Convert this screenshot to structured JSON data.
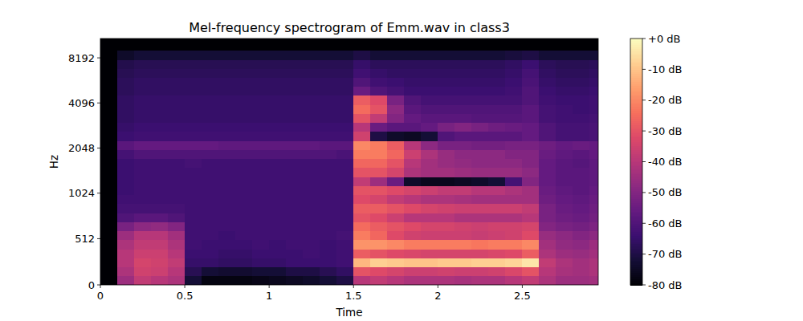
{
  "chart_data": {
    "type": "heatmap",
    "title": "Mel-frequency spectrogram of Emm.wav in class3",
    "x_label": "Time",
    "y_label": "Hz",
    "xlim": [
      0,
      2.95
    ],
    "ylim": [
      0,
      11025
    ],
    "xticks": [
      0,
      0.5,
      1,
      1.5,
      2,
      2.5
    ],
    "yticks": [
      0,
      512,
      1024,
      2048,
      4096,
      8192
    ],
    "x_edges": [
      0,
      0.1,
      0.2,
      0.3,
      0.4,
      0.5,
      0.6,
      0.7,
      0.8,
      0.9,
      1.0,
      1.1,
      1.2,
      1.3,
      1.4,
      1.5,
      1.6,
      1.7,
      1.8,
      1.9,
      2.0,
      2.1,
      2.2,
      2.3,
      2.4,
      2.5,
      2.6,
      2.7,
      2.8,
      2.9,
      2.95
    ],
    "y_edges": [
      0,
      100,
      200,
      300,
      400,
      500,
      600,
      700,
      800,
      900,
      1000,
      1150,
      1320,
      1520,
      1740,
      2000,
      2300,
      2640,
      3030,
      3480,
      4000,
      4600,
      5280,
      6060,
      6960,
      8000,
      9190,
      11025
    ],
    "values": [
      [
        -80,
        -45,
        -38,
        -40,
        -42,
        -72,
        -78,
        -78,
        -78,
        -77,
        -76,
        -75,
        -74,
        -72,
        -70,
        -40,
        -38,
        -40,
        -42,
        -42,
        -42,
        -43,
        -42,
        -42,
        -40,
        -38,
        -42,
        -45,
        -45,
        -44
      ],
      [
        -80,
        -42,
        -35,
        -36,
        -40,
        -68,
        -72,
        -73,
        -73,
        -72,
        -72,
        -70,
        -70,
        -68,
        -66,
        -30,
        -32,
        -34,
        -36,
        -36,
        -35,
        -36,
        -36,
        -35,
        -33,
        -30,
        -40,
        -43,
        -44,
        -42
      ],
      [
        -80,
        -40,
        -34,
        -35,
        -38,
        -65,
        -65,
        -66,
        -66,
        -65,
        -65,
        -64,
        -64,
        -64,
        -63,
        -12,
        -8,
        -9,
        -10,
        -10,
        -9,
        -9,
        -8,
        -8,
        -7,
        -4,
        -38,
        -42,
        -44,
        -42
      ],
      [
        -80,
        -40,
        -36,
        -36,
        -40,
        -64,
        -64,
        -65,
        -65,
        -64,
        -64,
        -64,
        -63,
        -64,
        -63,
        -28,
        -30,
        -32,
        -33,
        -34,
        -34,
        -34,
        -34,
        -33,
        -32,
        -28,
        -42,
        -45,
        -46,
        -44
      ],
      [
        -80,
        -42,
        -38,
        -38,
        -42,
        -63,
        -64,
        -64,
        -64,
        -63,
        -64,
        -63,
        -63,
        -64,
        -63,
        -18,
        -18,
        -20,
        -22,
        -22,
        -22,
        -22,
        -23,
        -22,
        -22,
        -20,
        -44,
        -47,
        -48,
        -45
      ],
      [
        -80,
        -45,
        -40,
        -40,
        -44,
        -63,
        -63,
        -64,
        -63,
        -63,
        -63,
        -63,
        -63,
        -63,
        -62,
        -22,
        -26,
        -32,
        -35,
        -36,
        -36,
        -36,
        -37,
        -36,
        -35,
        -32,
        -46,
        -48,
        -50,
        -48
      ],
      [
        -80,
        -52,
        -48,
        -47,
        -50,
        -63,
        -63,
        -63,
        -63,
        -63,
        -63,
        -63,
        -63,
        -63,
        -63,
        -25,
        -28,
        -30,
        -32,
        -34,
        -34,
        -35,
        -36,
        -35,
        -35,
        -34,
        -50,
        -52,
        -53,
        -51
      ],
      [
        -80,
        -60,
        -58,
        -58,
        -60,
        -63,
        -63,
        -63,
        -63,
        -63,
        -63,
        -63,
        -63,
        -63,
        -63,
        -30,
        -32,
        -36,
        -40,
        -40,
        -40,
        -42,
        -42,
        -42,
        -42,
        -40,
        -52,
        -54,
        -55,
        -53
      ],
      [
        -80,
        -62,
        -62,
        -62,
        -62,
        -63,
        -63,
        -63,
        -63,
        -63,
        -63,
        -63,
        -63,
        -63,
        -63,
        -28,
        -28,
        -30,
        -32,
        -34,
        -35,
        -36,
        -36,
        -36,
        -36,
        -38,
        -52,
        -55,
        -56,
        -54
      ],
      [
        -80,
        -63,
        -63,
        -63,
        -63,
        -63,
        -63,
        -63,
        -63,
        -63,
        -63,
        -63,
        -63,
        -63,
        -63,
        -32,
        -34,
        -38,
        -40,
        -42,
        -42,
        -43,
        -44,
        -44,
        -44,
        -44,
        -54,
        -56,
        -57,
        -55
      ],
      [
        -80,
        -64,
        -63,
        -63,
        -63,
        -63,
        -63,
        -63,
        -63,
        -63,
        -63,
        -63,
        -63,
        -63,
        -63,
        -30,
        -30,
        -32,
        -34,
        -36,
        -38,
        -38,
        -40,
        -40,
        -42,
        -44,
        -55,
        -57,
        -58,
        -56
      ],
      [
        -80,
        -64,
        -63,
        -63,
        -63,
        -63,
        -63,
        -63,
        -63,
        -63,
        -63,
        -63,
        -63,
        -63,
        -63,
        -38,
        -45,
        -55,
        -74,
        -76,
        -76,
        -75,
        -74,
        -72,
        -62,
        -50,
        -56,
        -58,
        -58,
        -57
      ],
      [
        -80,
        -64,
        -63,
        -63,
        -63,
        -63,
        -63,
        -63,
        -63,
        -63,
        -63,
        -63,
        -63,
        -63,
        -63,
        -30,
        -30,
        -34,
        -42,
        -44,
        -44,
        -45,
        -46,
        -46,
        -46,
        -48,
        -56,
        -58,
        -58,
        -57
      ],
      [
        -80,
        -64,
        -63,
        -63,
        -63,
        -62,
        -63,
        -63,
        -63,
        -63,
        -63,
        -63,
        -63,
        -63,
        -63,
        -26,
        -26,
        -30,
        -40,
        -44,
        -46,
        -47,
        -48,
        -48,
        -48,
        -50,
        -56,
        -58,
        -59,
        -57
      ],
      [
        -80,
        -62,
        -60,
        -60,
        -60,
        -60,
        -60,
        -60,
        -60,
        -60,
        -60,
        -60,
        -60,
        -60,
        -61,
        -22,
        -22,
        -26,
        -36,
        -42,
        -46,
        -48,
        -48,
        -48,
        -50,
        -50,
        -55,
        -57,
        -58,
        -56
      ],
      [
        -80,
        -58,
        -56,
        -56,
        -56,
        -56,
        -56,
        -57,
        -57,
        -57,
        -57,
        -57,
        -57,
        -58,
        -58,
        -20,
        -22,
        -28,
        -40,
        -48,
        -52,
        -52,
        -53,
        -53,
        -52,
        -52,
        -54,
        -56,
        -55,
        -56
      ],
      [
        -80,
        -64,
        -63,
        -63,
        -63,
        -63,
        -63,
        -63,
        -63,
        -63,
        -63,
        -63,
        -63,
        -63,
        -63,
        -35,
        -70,
        -74,
        -75,
        -72,
        -60,
        -58,
        -58,
        -58,
        -58,
        -56,
        -60,
        -62,
        -62,
        -61
      ],
      [
        -80,
        -65,
        -64,
        -64,
        -64,
        -64,
        -64,
        -64,
        -64,
        -64,
        -64,
        -64,
        -64,
        -64,
        -64,
        -40,
        -55,
        -58,
        -58,
        -56,
        -52,
        -50,
        -52,
        -54,
        -55,
        -56,
        -60,
        -62,
        -62,
        -61
      ],
      [
        -80,
        -66,
        -65,
        -65,
        -65,
        -65,
        -65,
        -65,
        -65,
        -65,
        -65,
        -65,
        -65,
        -65,
        -65,
        -30,
        -38,
        -50,
        -56,
        -58,
        -58,
        -58,
        -59,
        -59,
        -59,
        -58,
        -62,
        -63,
        -63,
        -62
      ],
      [
        -80,
        -66,
        -65,
        -65,
        -65,
        -65,
        -65,
        -65,
        -65,
        -65,
        -65,
        -65,
        -65,
        -65,
        -65,
        -25,
        -30,
        -48,
        -58,
        -60,
        -60,
        -60,
        -60,
        -60,
        -60,
        -58,
        -62,
        -63,
        -64,
        -63
      ],
      [
        -80,
        -66,
        -65,
        -65,
        -65,
        -65,
        -65,
        -65,
        -65,
        -65,
        -65,
        -65,
        -65,
        -65,
        -65,
        -28,
        -32,
        -52,
        -60,
        -62,
        -62,
        -62,
        -62,
        -62,
        -62,
        -60,
        -63,
        -64,
        -64,
        -63
      ],
      [
        -80,
        -67,
        -66,
        -66,
        -66,
        -66,
        -66,
        -66,
        -66,
        -66,
        -66,
        -66,
        -66,
        -66,
        -66,
        -55,
        -60,
        -62,
        -64,
        -64,
        -64,
        -64,
        -64,
        -64,
        -63,
        -60,
        -64,
        -65,
        -65,
        -64
      ],
      [
        -80,
        -67,
        -66,
        -66,
        -66,
        -66,
        -66,
        -66,
        -66,
        -66,
        -66,
        -66,
        -66,
        -66,
        -66,
        -60,
        -63,
        -64,
        -65,
        -65,
        -65,
        -65,
        -65,
        -65,
        -64,
        -61,
        -65,
        -66,
        -66,
        -65
      ],
      [
        -80,
        -68,
        -67,
        -67,
        -67,
        -67,
        -67,
        -67,
        -67,
        -67,
        -67,
        -67,
        -67,
        -67,
        -67,
        -63,
        -65,
        -66,
        -66,
        -66,
        -66,
        -66,
        -66,
        -66,
        -65,
        -62,
        -66,
        -67,
        -67,
        -66
      ],
      [
        -80,
        -69,
        -68,
        -68,
        -68,
        -68,
        -68,
        -68,
        -68,
        -68,
        -68,
        -68,
        -68,
        -68,
        -68,
        -65,
        -67,
        -67,
        -67,
        -67,
        -67,
        -67,
        -67,
        -67,
        -66,
        -64,
        -67,
        -68,
        -68,
        -67
      ],
      [
        -80,
        -74,
        -72,
        -72,
        -72,
        -72,
        -72,
        -72,
        -72,
        -72,
        -72,
        -72,
        -72,
        -72,
        -72,
        -70,
        -72,
        -72,
        -72,
        -72,
        -72,
        -72,
        -72,
        -72,
        -71,
        -70,
        -72,
        -72,
        -72,
        -72
      ],
      [
        -80,
        -80,
        -80,
        -80,
        -80,
        -80,
        -80,
        -80,
        -80,
        -80,
        -80,
        -80,
        -80,
        -80,
        -80,
        -80,
        -80,
        -80,
        -80,
        -80,
        -80,
        -80,
        -80,
        -80,
        -80,
        -80,
        -80,
        -80,
        -80,
        -80
      ]
    ],
    "colorbar_range": [
      -80,
      0
    ],
    "colorbar_ticks": [
      {
        "value": 0,
        "label": "+0 dB"
      },
      {
        "value": -10,
        "label": "-10 dB"
      },
      {
        "value": -20,
        "label": "-20 dB"
      },
      {
        "value": -30,
        "label": "-30 dB"
      },
      {
        "value": -40,
        "label": "-40 dB"
      },
      {
        "value": -50,
        "label": "-50 dB"
      },
      {
        "value": -60,
        "label": "-60 dB"
      },
      {
        "value": -70,
        "label": "-70 dB"
      },
      {
        "value": -80,
        "label": "-80 dB"
      }
    ]
  }
}
